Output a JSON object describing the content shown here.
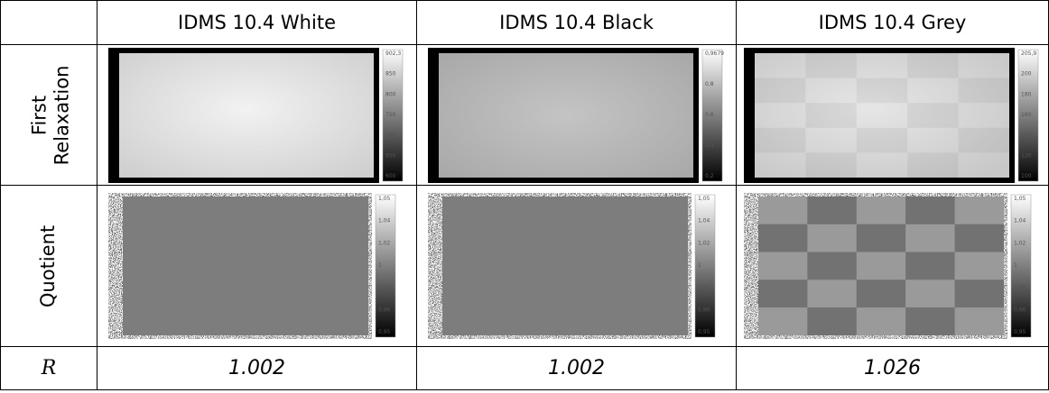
{
  "table": {
    "columns": [
      "IDMS 10.4 White",
      "IDMS 10.4 Black",
      "IDMS 10.4 Grey"
    ],
    "rows": [
      {
        "label": [
          "First",
          "Relaxation"
        ],
        "colorbars": [
          [
            "902,3",
            "850",
            "800",
            "750",
            "700",
            "650",
            "600"
          ],
          [
            "0,9679",
            "0,8",
            "0,6",
            "0,4",
            "0,2"
          ],
          [
            "205,9",
            "200",
            "180",
            "160",
            "140",
            "120",
            "100"
          ]
        ]
      },
      {
        "label": [
          "Quotient"
        ],
        "colorbars": [
          [
            "1,05",
            "1,04",
            "1,02",
            "1",
            "0,98",
            "0,96",
            "0,95"
          ],
          [
            "1,05",
            "1,04",
            "1,02",
            "1",
            "0,98",
            "0,96",
            "0,95"
          ],
          [
            "1,05",
            "1,04",
            "1,02",
            "1",
            "0,98",
            "0,96",
            "0,95"
          ]
        ]
      }
    ],
    "r_row": {
      "label": "R",
      "values": [
        "1.002",
        "1.002",
        "1.026"
      ]
    }
  }
}
